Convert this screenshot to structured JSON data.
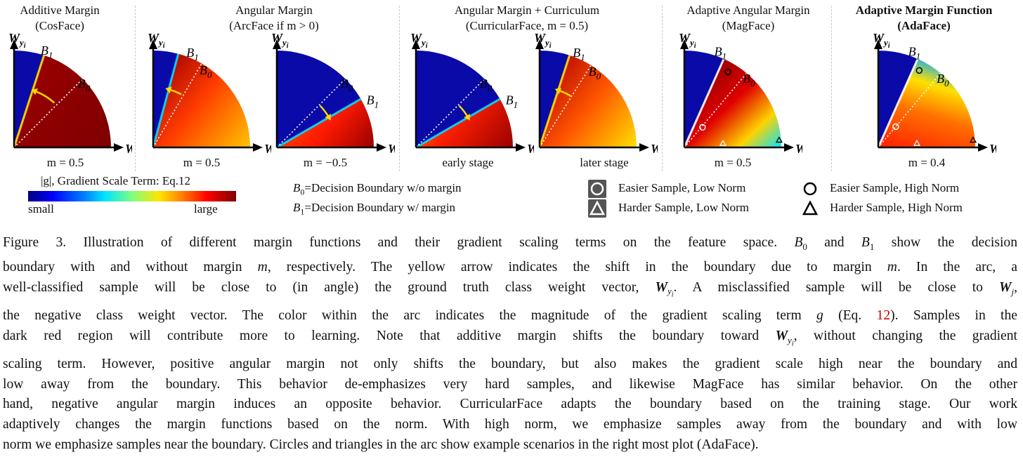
{
  "panels": [
    {
      "title_line1": "Additive Margin",
      "title_line2": "(CosFace)",
      "label": "m = 0.5"
    },
    {
      "title_line1": "Angular Margin",
      "title_line2": "(ArcFace if m > 0)",
      "label": "m = 0.5"
    },
    {
      "label": "m = −0.5"
    },
    {
      "title_line1": "Angular Margin + Curriculum",
      "title_line2": "(CurricularFace, m = 0.5)",
      "label": "early stage"
    },
    {
      "label": "later stage"
    },
    {
      "title_line1": "Adaptive Angular Margin",
      "title_line2": "(MagFace)",
      "label": "m = 0.5"
    },
    {
      "title_line1": "Adaptive Margin Function",
      "title_line2": "(AdaFace)",
      "label": "m = 0.4"
    }
  ],
  "axis": {
    "wy": "W",
    "wy_sub": "y",
    "wy_subsub": "i",
    "wj": "W",
    "wj_sub": "j",
    "b0": "B",
    "b0_sub": "0",
    "b1": "B",
    "b1_sub": "1"
  },
  "colorbar": {
    "title": "|g|, Gradient Scale Term: Eq.12",
    "small": "small",
    "large": "large"
  },
  "boundary_defs": {
    "b0": "=Decision Boundary w/o margin",
    "b1": "=Decision Boundary w/ margin"
  },
  "legend": {
    "easier_low": "Easier Sample, Low Norm",
    "harder_low": "Harder Sample, Low Norm",
    "easier_high": "Easier Sample, High Norm",
    "harder_high": "Harder Sample, High Norm"
  },
  "caption": {
    "l1a": "Figure 3. Illustration of different margin functions and their gradient scaling terms on the feature space.",
    "l1b": "and",
    "l1c": "show the decision",
    "l2a": "boundary with and without margin",
    "l2b": ", respectively. The yellow arrow indicates the shift in the boundary due to margin",
    "l2c": ". In the arc, a",
    "l3a": "well-classified sample will be close to (in angle) the ground truth class weight vector,",
    "l3b": ". A misclassified sample will be close to",
    "l3c": ",",
    "l4a": "the negative class weight vector. The color within the arc indicates the magnitude of the gradient scaling term",
    "l4b": "(Eq.",
    "l4ref": "12",
    "l4c": "). Samples in the",
    "l5a": "dark red region will contribute more to learning. Note that additive margin shifts the boundary toward",
    "l5b": ", without changing the gradient",
    "l6": "scaling term. However, positive angular margin not only shifts the boundary, but also makes the gradient scale high near the boundary and",
    "l7": "low away from the boundary. This behavior de-emphasizes very hard samples, and likewise MagFace has similar behavior. On the other",
    "l8": "hand, negative angular margin induces an opposite behavior. CurricularFace adapts the boundary based on the training stage. Our work",
    "l9": "adaptively changes the margin functions based on the norm. With high norm, we emphasize samples away from the boundary and with low",
    "l10": "norm we emphasize samples near the boundary. Circles and triangles in the arc show example scenarios in the right most plot (AdaFace)."
  }
}
